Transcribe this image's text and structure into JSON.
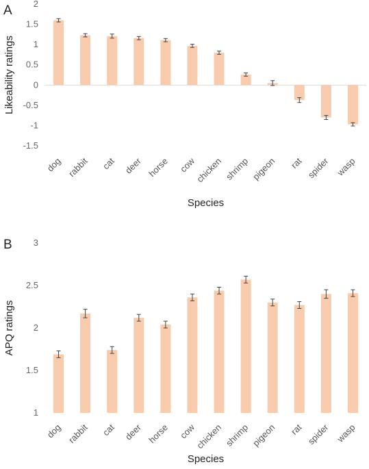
{
  "chart_data": [
    {
      "type": "bar",
      "panel_letter": "A",
      "categories": [
        "dog",
        "rabbit",
        "cat",
        "deer",
        "horse",
        "cow",
        "chicken",
        "shrimp",
        "pigeon",
        "rat",
        "spider",
        "wasp"
      ],
      "values": [
        1.6,
        1.23,
        1.21,
        1.16,
        1.11,
        0.97,
        0.8,
        0.26,
        0.05,
        -0.37,
        -0.8,
        -0.97
      ],
      "error": [
        0.04,
        0.04,
        0.05,
        0.04,
        0.04,
        0.04,
        0.04,
        0.04,
        0.06,
        0.06,
        0.05,
        0.04
      ],
      "ylim": [
        -1.5,
        2
      ],
      "yticks": [
        "-1.5",
        "-1",
        "-0.5",
        "0",
        "0.5",
        "1",
        "1.5",
        "2"
      ],
      "xlabel": "Species",
      "ylabel": "Likeability ratings",
      "bar_color": "#F8CBAD",
      "error_color": "#404040"
    },
    {
      "type": "bar",
      "panel_letter": "B",
      "categories": [
        "dog",
        "rabbit",
        "cat",
        "deer",
        "horse",
        "cow",
        "chicken",
        "shrimp",
        "pigeon",
        "rat",
        "spider",
        "wasp"
      ],
      "values": [
        1.69,
        2.17,
        1.74,
        2.12,
        2.04,
        2.36,
        2.44,
        2.57,
        2.3,
        2.27,
        2.4,
        2.41
      ],
      "error": [
        0.04,
        0.05,
        0.04,
        0.04,
        0.04,
        0.04,
        0.04,
        0.04,
        0.04,
        0.04,
        0.05,
        0.04
      ],
      "ylim": [
        1,
        3
      ],
      "yticks": [
        "1",
        "1.5",
        "2",
        "2.5",
        "3"
      ],
      "xlabel": "Species",
      "ylabel": "APQ ratings",
      "bar_color": "#F8CBAD",
      "error_color": "#404040"
    }
  ]
}
